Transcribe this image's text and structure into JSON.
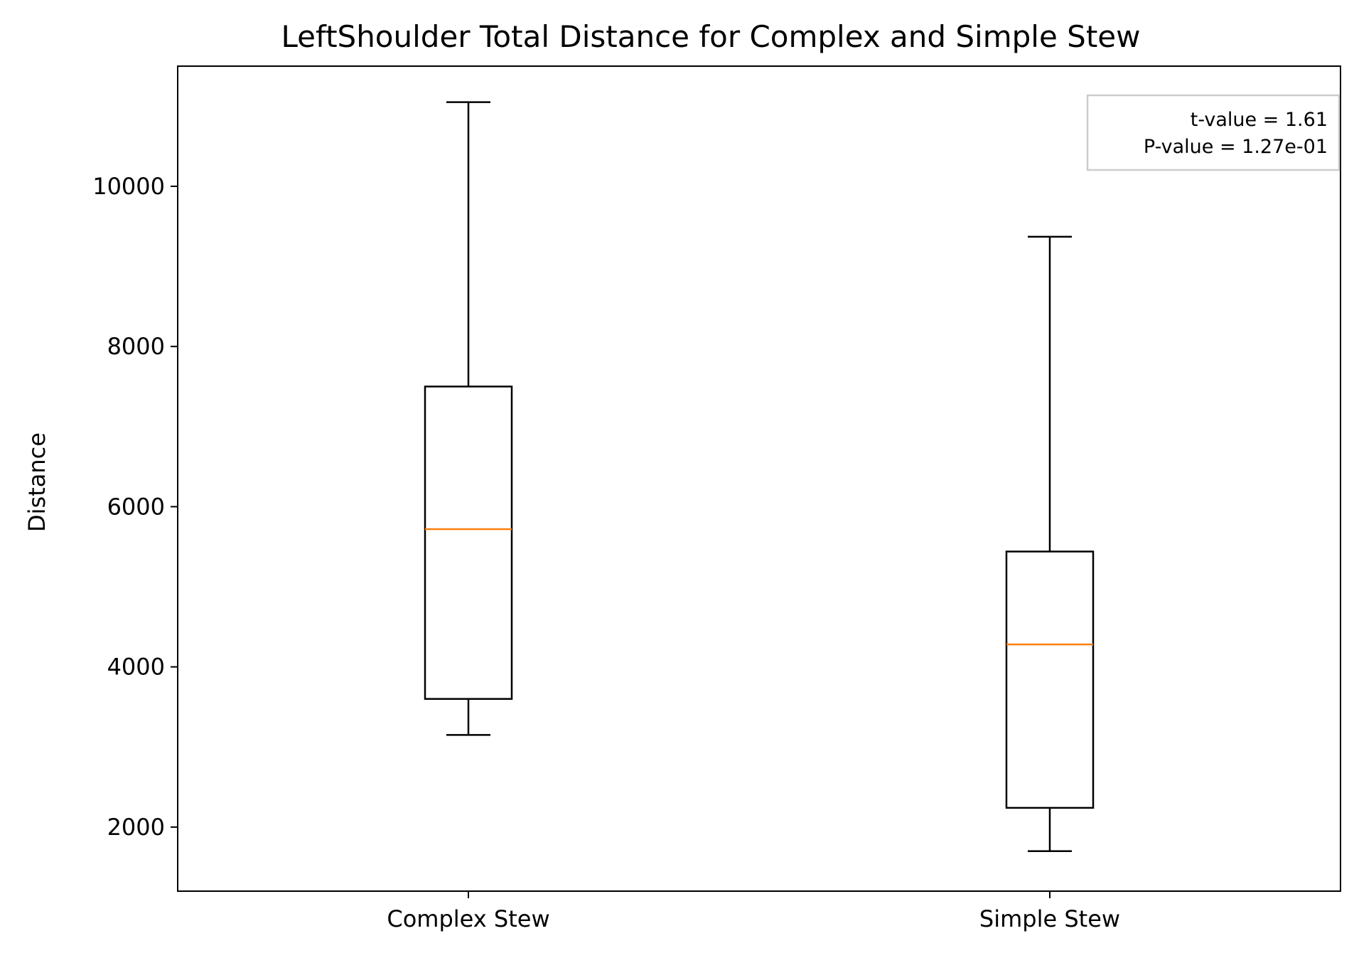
{
  "chart_data": {
    "type": "boxplot",
    "title": "LeftShoulder Total Distance for Complex and Simple Stew",
    "xlabel": "",
    "ylabel": "Distance",
    "ylim": [
      1200,
      11500
    ],
    "yticks": [
      2000,
      4000,
      6000,
      8000,
      10000
    ],
    "ytick_labels": [
      "2000",
      "4000",
      "6000",
      "8000",
      "10000"
    ],
    "grid": false,
    "categories": [
      "Complex Stew",
      "Simple Stew"
    ],
    "boxes": [
      {
        "category": "Complex Stew",
        "whisker_low": 3150,
        "q1": 3600,
        "median": 5720,
        "q3": 7500,
        "whisker_high": 11050
      },
      {
        "category": "Simple Stew",
        "whisker_low": 1700,
        "q1": 2240,
        "median": 4280,
        "q3": 5440,
        "whisker_high": 9370
      }
    ],
    "annotation": {
      "placement": "top-right",
      "lines": [
        "t-value = 1.61",
        "P-value = 1.27e-01"
      ]
    },
    "colors": {
      "box": "#000000",
      "median": "#ff7f0e",
      "annotation_border": "#cccccc"
    }
  }
}
